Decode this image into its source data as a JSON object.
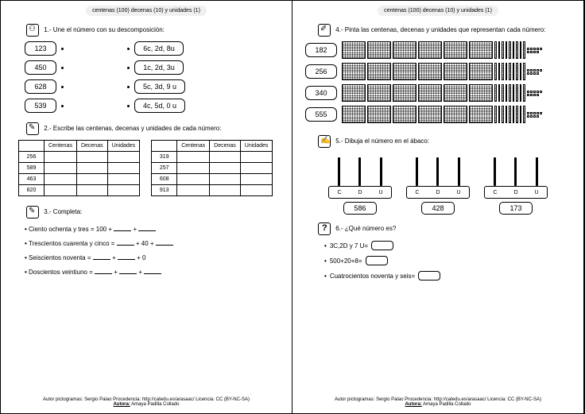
{
  "header": "centenas (100) decenas (10) y unidades (1)",
  "ex1": {
    "title": "1.- Une el número con su descomposición:",
    "nums": [
      "123",
      "450",
      "628",
      "539"
    ],
    "decomps": [
      "6c, 2d, 8u",
      "1c, 2d, 3u",
      "5c, 3d, 9 u",
      "4c, 5d, 0 u"
    ]
  },
  "ex2": {
    "title": "2.- Escribe las centenas, decenas y unidades de cada número:",
    "headers": [
      "Centenas",
      "Decenas",
      "Unidades"
    ],
    "table1": [
      "256",
      "589",
      "463",
      "820"
    ],
    "table2": [
      "319",
      "257",
      "608",
      "913"
    ]
  },
  "ex3": {
    "title": "3.- Completa:",
    "items": [
      {
        "text": "Ciento ochenta y tres = 100 + ",
        "pattern": "b+b"
      },
      {
        "text": "Trescientos cuarenta y cinco = ",
        "pattern": "b+40+b"
      },
      {
        "text": "Seiscientos noventa = ",
        "pattern": "b+b+0"
      },
      {
        "text": "Doscientos veintiuno = ",
        "pattern": "b+b+b"
      }
    ]
  },
  "ex4": {
    "title": "4.- Pinta las centenas, decenas y unidades que representan cada número:",
    "nums": [
      "182",
      "256",
      "340",
      "555"
    ]
  },
  "ex5": {
    "title": "5.- Dibuja el número en el ábaco:",
    "labels": [
      "C",
      "D",
      "U"
    ],
    "nums": [
      "586",
      "428",
      "173"
    ]
  },
  "ex6": {
    "title": "6.- ¿Qué número es?",
    "items": [
      "3C,2D y 7 U=",
      "500+20+8=",
      "Cuatrocientos noventa y seis="
    ]
  },
  "footer": {
    "line1": "Autor pictogramas: Sergio Palao  Procedencia: http://catedu.es/arasaac/  Licencia: CC (BY-NC-SA)",
    "line2_label": "Autora:",
    "line2_name": "Amaya Padilla Collado"
  }
}
